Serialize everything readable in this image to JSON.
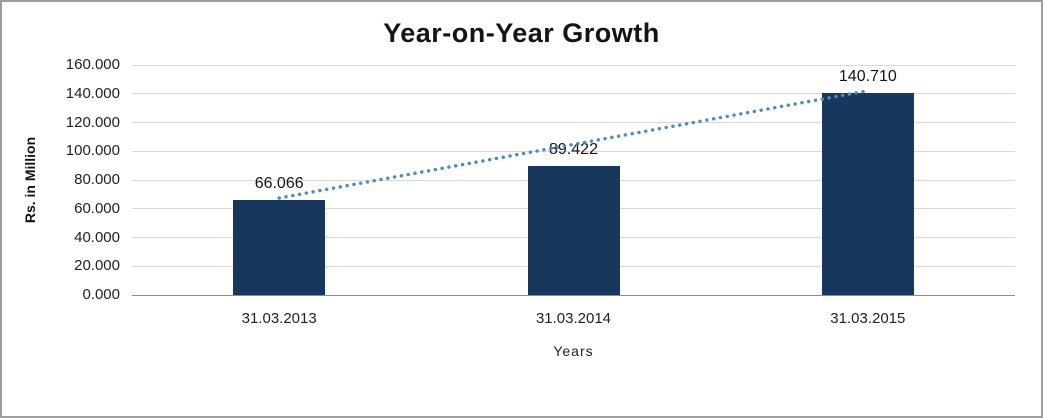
{
  "chart_data": {
    "type": "bar",
    "title": "Year-on-Year Growth",
    "categories": [
      "31.03.2013",
      "31.03.2014",
      "31.03.2015"
    ],
    "values": [
      66.066,
      89.422,
      140.71
    ],
    "value_labels": [
      "66.066",
      "89.422",
      "140.710"
    ],
    "xlabel": "Years",
    "ylabel": "Rs. in Million",
    "ylim": [
      0,
      160
    ],
    "ytick_step": 20,
    "ytick_labels": [
      "0.000",
      "20.000",
      "40.000",
      "60.000",
      "80.000",
      "100.000",
      "120.000",
      "140.000",
      "160.000"
    ],
    "grid": true,
    "legend": "none",
    "bar_color": "#17375D",
    "trendline": {
      "type": "linear",
      "style": "dotted",
      "color": "#4E8BC4"
    }
  }
}
